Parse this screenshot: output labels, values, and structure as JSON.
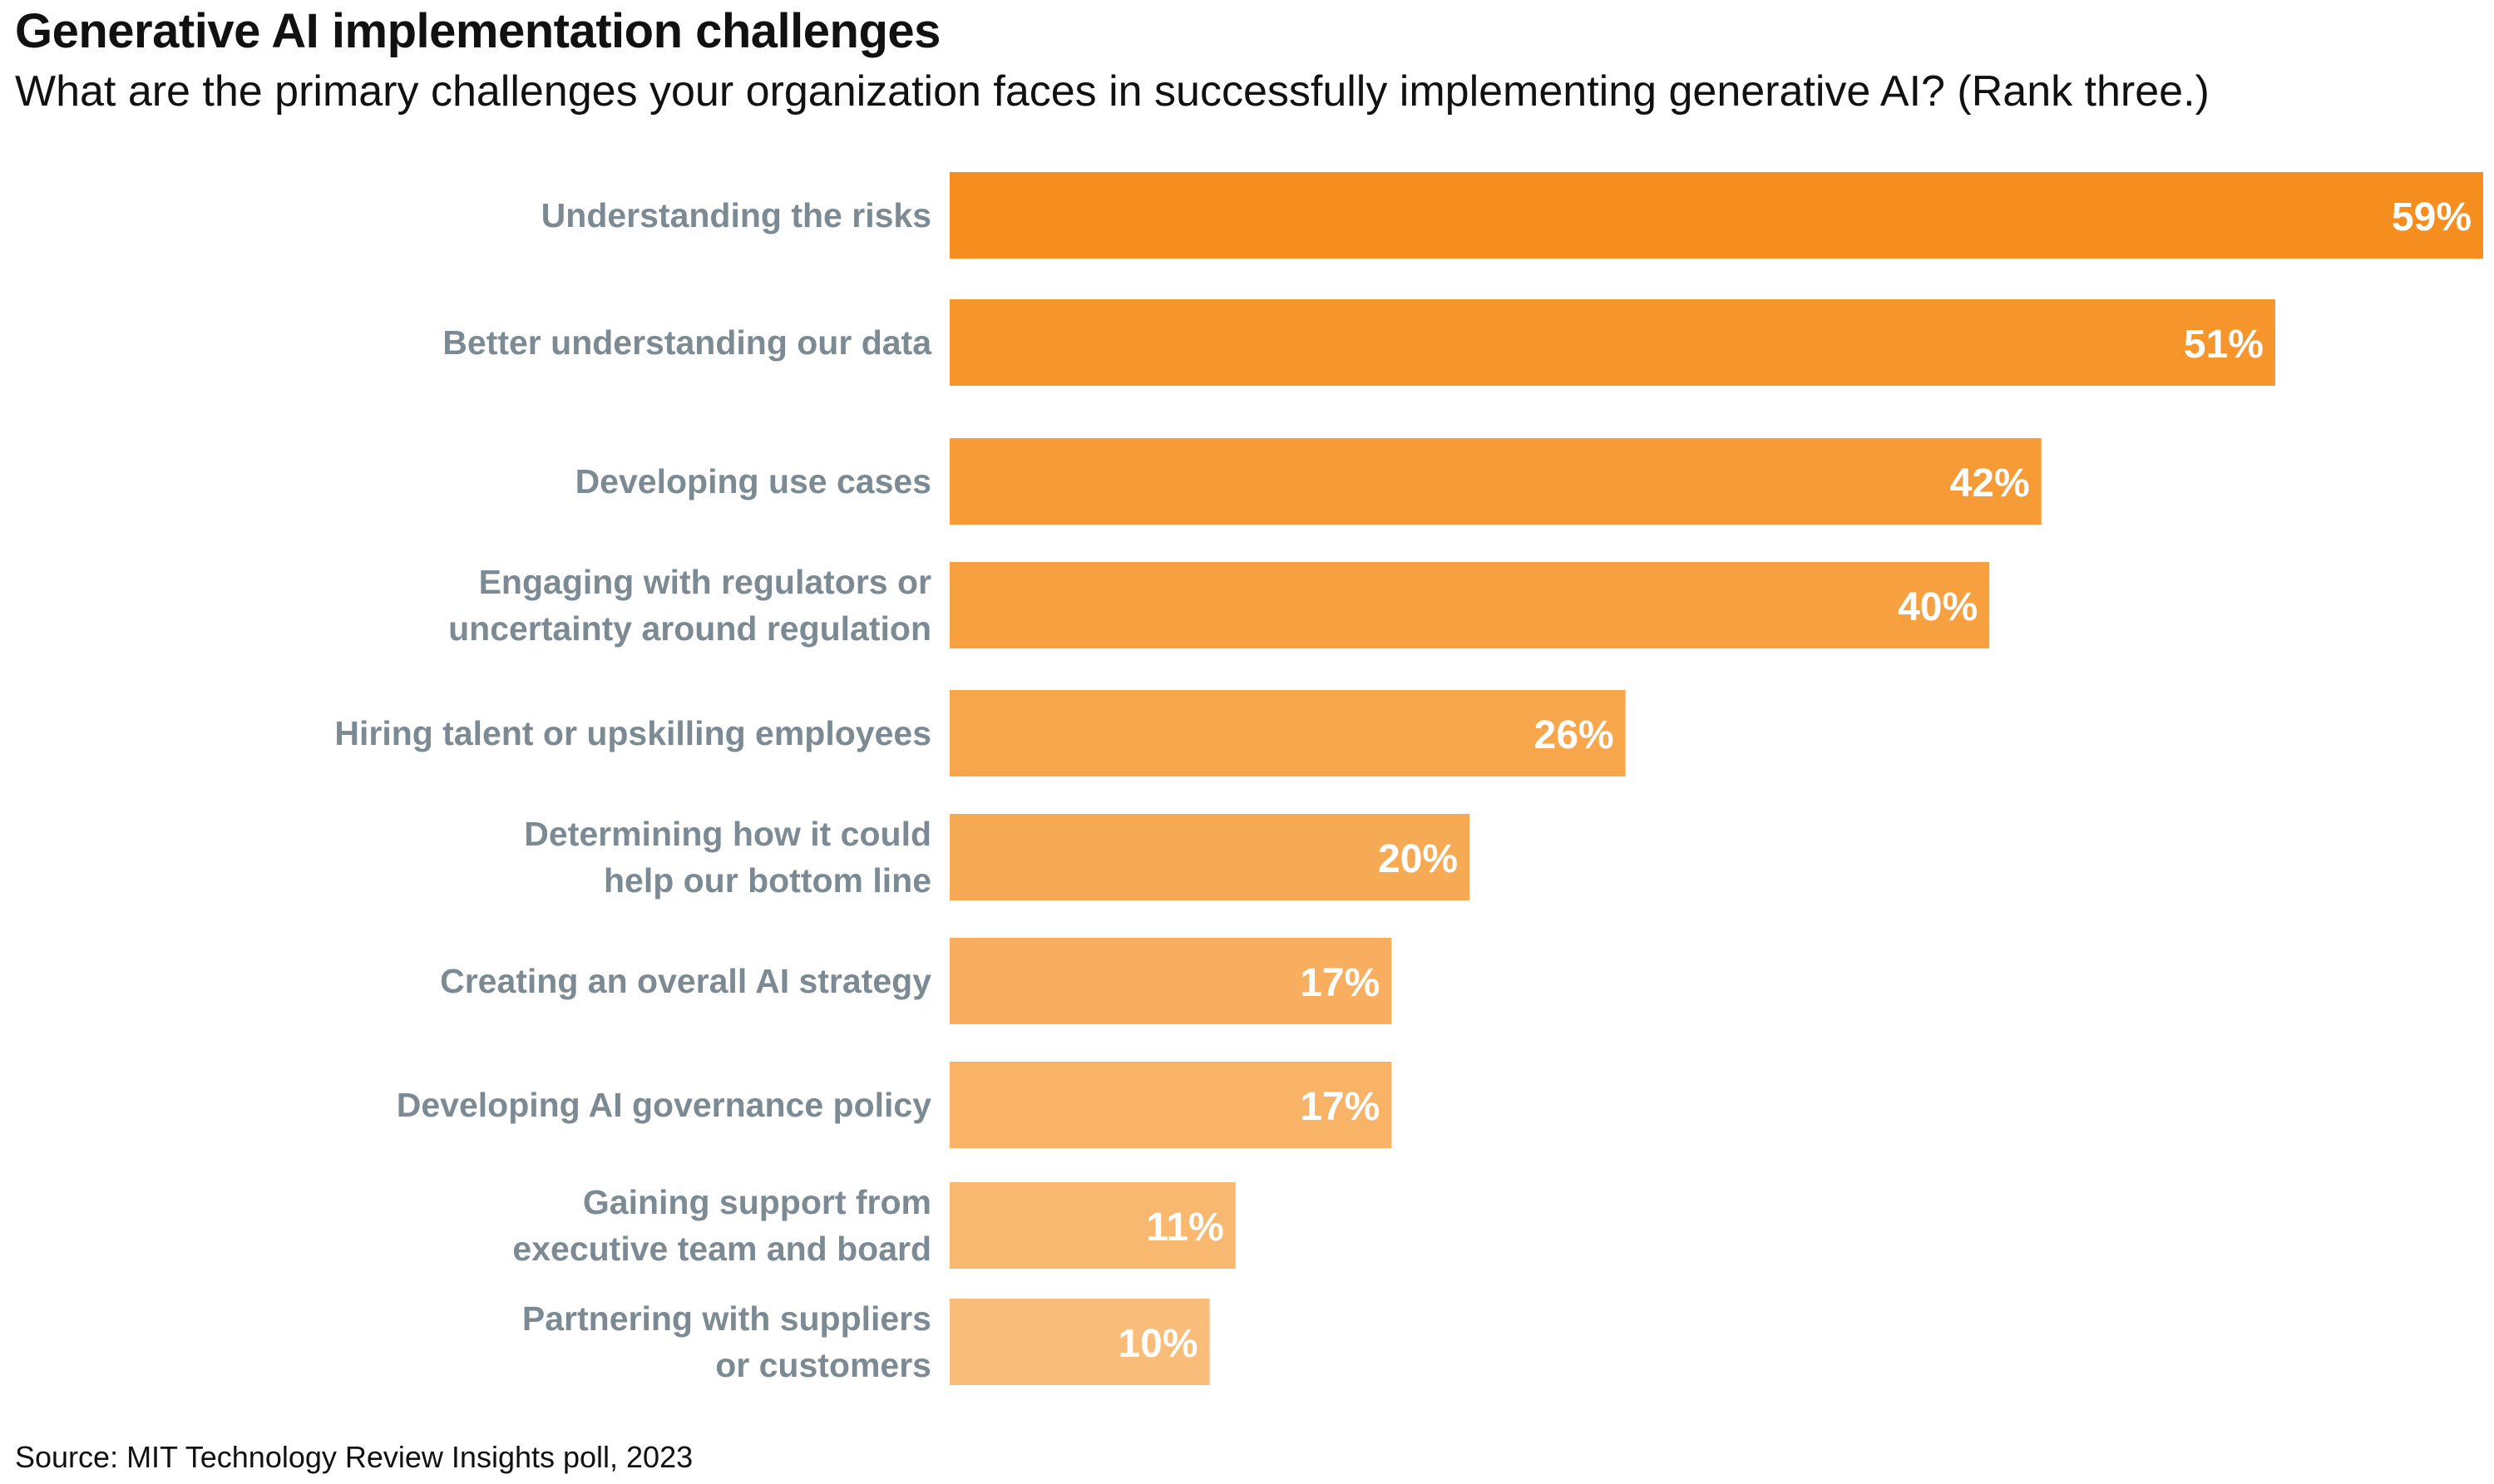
{
  "chart_data": {
    "type": "bar",
    "orientation": "horizontal",
    "title": "Generative AI implementation challenges",
    "subtitle": "What are the primary challenges your organization faces in successfully implementing generative AI? (Rank three.)",
    "categories": [
      [
        "Understanding the risks"
      ],
      [
        "Better understanding our data"
      ],
      [
        "Developing use cases"
      ],
      [
        "Engaging with regulators or",
        "uncertainty around regulation"
      ],
      [
        "Hiring talent or upskilling employees"
      ],
      [
        "Determining how it could",
        "help our bottom line"
      ],
      [
        "Creating an overall AI strategy"
      ],
      [
        "Developing AI governance policy"
      ],
      [
        "Gaining support from",
        "executive team and board"
      ],
      [
        "Partnering with suppliers",
        "or customers"
      ]
    ],
    "values": [
      59,
      51,
      42,
      40,
      26,
      20,
      17,
      17,
      11,
      10
    ],
    "value_labels": [
      "59%",
      "51%",
      "42%",
      "40%",
      "26%",
      "20%",
      "17%",
      "17%",
      "11%",
      "10%"
    ],
    "colors": [
      "#f68d1f",
      "#f6952b",
      "#f69b36",
      "#f7a040",
      "#f7a64b",
      "#f7aa54",
      "#f8ae5e",
      "#f8b366",
      "#f9b86f",
      "#f9bd79"
    ],
    "xlim": [
      0,
      59
    ],
    "grid": false,
    "legend": "none",
    "source": "Source: MIT Technology Review Insights poll, 2023"
  }
}
